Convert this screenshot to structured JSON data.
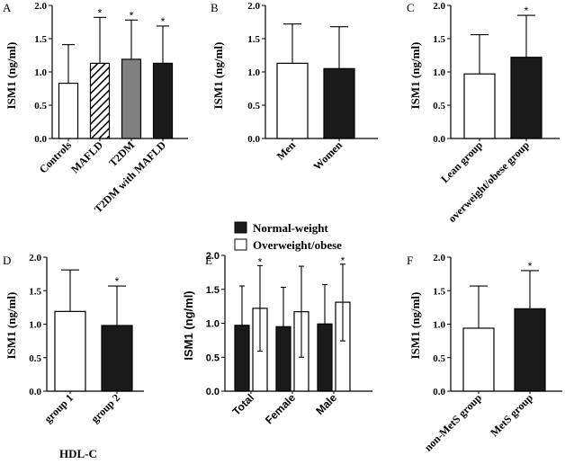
{
  "legend": {
    "normal": "Normal-weight",
    "overweight": "Overweight/obese",
    "colors": {
      "normal": "#1a1a1a",
      "overweight": "#ffffff"
    }
  },
  "hdl_label": "HDL-C",
  "chart_data": [
    {
      "panel": "A",
      "type": "bar",
      "ylabel": "ISM1 (ng/ml)",
      "ylim": [
        0,
        2.0
      ],
      "yticks": [
        "0.0",
        "0.5",
        "1.0",
        "1.5",
        "2.0"
      ],
      "categories": [
        "Controls",
        "MAFLD",
        "T2DM",
        "T2DM with MAFLD"
      ],
      "values": [
        0.83,
        1.13,
        1.19,
        1.13
      ],
      "error_up": [
        1.41,
        1.82,
        1.78,
        1.69
      ],
      "fills": [
        "white",
        "hatch",
        "gray",
        "black"
      ],
      "significance": [
        "",
        "*",
        "*",
        "*"
      ]
    },
    {
      "panel": "B",
      "type": "bar",
      "ylabel": "ISM1 (ng/ml)",
      "ylim": [
        0,
        2.0
      ],
      "yticks": [
        "0.0",
        "0.5",
        "1.0",
        "1.5",
        "2.0"
      ],
      "categories": [
        "Men",
        "Women"
      ],
      "values": [
        1.13,
        1.05
      ],
      "error_up": [
        1.72,
        1.68
      ],
      "fills": [
        "white",
        "black"
      ],
      "significance": [
        "",
        ""
      ]
    },
    {
      "panel": "C",
      "type": "bar",
      "ylabel": "ISM1 (ng/ml)",
      "ylim": [
        0,
        2.0
      ],
      "yticks": [
        "0.0",
        "0.5",
        "1.0",
        "1.5",
        "2.0"
      ],
      "categories": [
        "Lean group",
        "overweight/obese group"
      ],
      "values": [
        0.97,
        1.22
      ],
      "error_up": [
        1.56,
        1.85
      ],
      "fills": [
        "white",
        "black"
      ],
      "significance": [
        "",
        "*"
      ]
    },
    {
      "panel": "D",
      "type": "bar",
      "ylabel": "ISM1 (ng/ml)",
      "ylim": [
        0,
        2.0
      ],
      "yticks": [
        "0.0",
        "0.5",
        "1.0",
        "1.5",
        "2.0"
      ],
      "categories": [
        "group 1",
        "group 2"
      ],
      "values": [
        1.19,
        0.98
      ],
      "error_up": [
        1.81,
        1.57
      ],
      "fills": [
        "white",
        "black"
      ],
      "significance": [
        "",
        "*"
      ]
    },
    {
      "panel": "E",
      "type": "bar",
      "ylabel": "ISM1 (ng/ml)",
      "ylim": [
        0,
        2.0
      ],
      "yticks": [
        "0.0",
        "0.5",
        "1.0",
        "1.5",
        "2.0"
      ],
      "categories": [
        "Total",
        "Female",
        "Male"
      ],
      "series": [
        {
          "name": "Normal-weight",
          "fill": "black",
          "values": [
            0.97,
            0.95,
            0.99
          ],
          "error_up": [
            1.55,
            1.53,
            1.57
          ],
          "error_down": [
            null,
            null,
            null
          ]
        },
        {
          "name": "Overweight/obese",
          "fill": "white",
          "values": [
            1.22,
            1.17,
            1.31
          ],
          "error_up": [
            1.85,
            1.84,
            1.87
          ],
          "error_down": [
            0.59,
            0.5,
            0.74
          ]
        }
      ],
      "significance": [
        "*",
        "",
        "*"
      ]
    },
    {
      "panel": "F",
      "type": "bar",
      "ylabel": "ISM1 (ng/ml)",
      "ylim": [
        0,
        2.0
      ],
      "yticks": [
        "0.0",
        "0.5",
        "1.0",
        "1.5",
        "2.0"
      ],
      "categories": [
        "non-MetS group",
        "MetS group"
      ],
      "values": [
        0.94,
        1.23
      ],
      "error_up": [
        1.57,
        1.8
      ],
      "fills": [
        "white",
        "black"
      ],
      "significance": [
        "",
        "*"
      ]
    }
  ]
}
